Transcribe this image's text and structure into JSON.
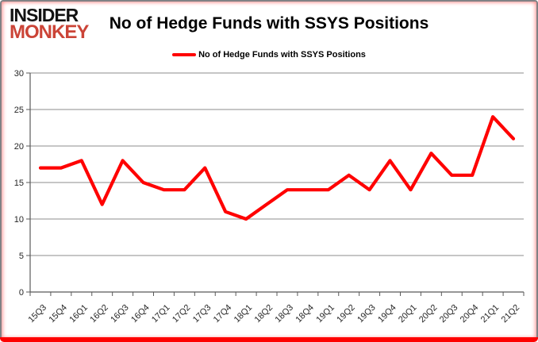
{
  "header": {
    "logo_line1": "INSIDER",
    "logo_line2": "MONKEY",
    "title": "No of Hedge Funds with SSYS Positions"
  },
  "legend": {
    "label": "No of Hedge Funds with SSYS Positions"
  },
  "colors": {
    "series_red": "#ff0000",
    "logo_red": "#cb4437",
    "bottom_bar_red": "#fe0000",
    "frame_gray": "#808285",
    "grid_gray": "#8c8c8c",
    "axis_gray": "#595959",
    "tick_text": "#262626"
  },
  "chart_data": {
    "type": "line",
    "title": "No of Hedge Funds with SSYS Positions",
    "categories": [
      "15Q3",
      "15Q4",
      "16Q1",
      "16Q2",
      "16Q3",
      "16Q4",
      "17Q1",
      "17Q2",
      "17Q3",
      "17Q4",
      "18Q1",
      "18Q2",
      "18Q3",
      "18Q4",
      "19Q1",
      "19Q2",
      "19Q3",
      "19Q4",
      "20Q1",
      "20Q2",
      "20Q3",
      "20Q4",
      "21Q1",
      "21Q2"
    ],
    "series": [
      {
        "name": "No of Hedge Funds with SSYS Positions",
        "color": "#ff0000",
        "values": [
          17,
          17,
          18,
          12,
          18,
          15,
          14,
          14,
          17,
          11,
          10,
          12,
          14,
          14,
          14,
          16,
          14,
          18,
          14,
          19,
          16,
          16,
          24,
          21
        ]
      }
    ],
    "xlabel": "",
    "ylabel": "",
    "ylim": [
      0,
      30
    ],
    "ytick_interval": 5,
    "grid": true,
    "legend_position": "top-center"
  }
}
